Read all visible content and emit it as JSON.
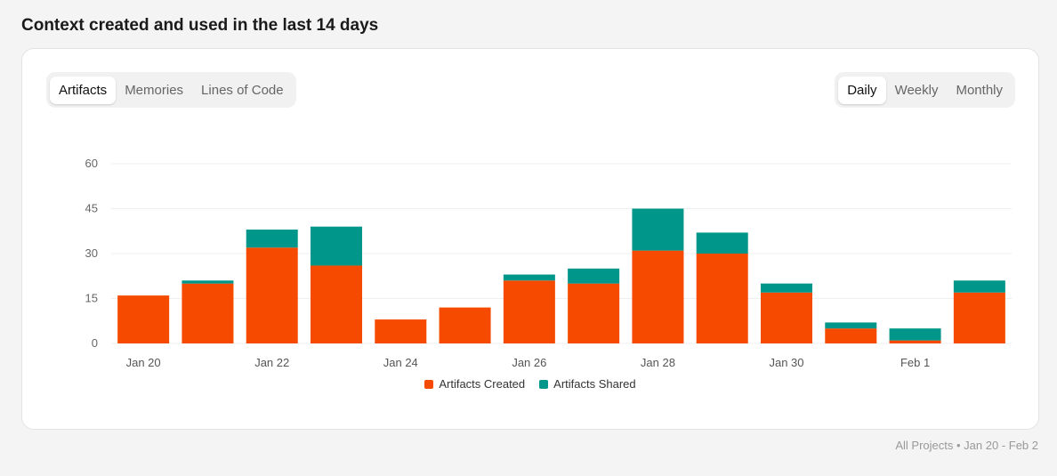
{
  "title": "Context created and used in the last 14 days",
  "metric_tabs": [
    {
      "label": "Artifacts",
      "active": true
    },
    {
      "label": "Memories",
      "active": false
    },
    {
      "label": "Lines of Code",
      "active": false
    }
  ],
  "period_tabs": [
    {
      "label": "Daily",
      "active": true
    },
    {
      "label": "Weekly",
      "active": false
    },
    {
      "label": "Monthly",
      "active": false
    }
  ],
  "footer": "All Projects • Jan 20 - Feb 2",
  "chart_data": {
    "type": "bar",
    "stacked": true,
    "categories": [
      "Jan 20",
      "Jan 21",
      "Jan 22",
      "Jan 23",
      "Jan 24",
      "Jan 25",
      "Jan 26",
      "Jan 27",
      "Jan 28",
      "Jan 29",
      "Jan 30",
      "Jan 31",
      "Feb 1",
      "Feb 2"
    ],
    "x_tick_labels": [
      "Jan 20",
      "",
      "Jan 22",
      "",
      "Jan 24",
      "",
      "Jan 26",
      "",
      "Jan 28",
      "",
      "Jan 30",
      "",
      "Feb 1",
      ""
    ],
    "series": [
      {
        "name": "Artifacts Created",
        "color": "#f54a00",
        "values": [
          16,
          20,
          32,
          26,
          8,
          12,
          21,
          20,
          31,
          30,
          17,
          5,
          1,
          17
        ]
      },
      {
        "name": "Artifacts Shared",
        "color": "#009689",
        "values": [
          0,
          1,
          6,
          13,
          0,
          0,
          2,
          5,
          14,
          7,
          3,
          2,
          4,
          4
        ]
      }
    ],
    "y_ticks": [
      0,
      15,
      30,
      45,
      60
    ],
    "ylim": [
      0,
      60
    ],
    "grid": true,
    "legend": "bottom"
  }
}
